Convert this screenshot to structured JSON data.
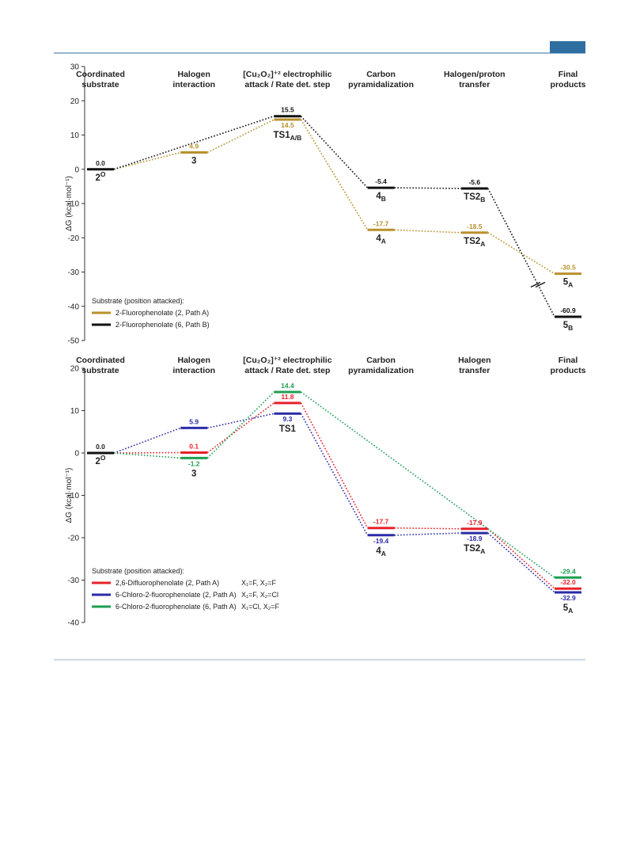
{
  "chart_data": [
    {
      "type": "line",
      "categories": [
        [
          "Coordinated",
          "substrate"
        ],
        [
          "Halogen",
          "interaction"
        ],
        [
          "[Cu₂O₂]⁺² electrophilic",
          "attack / Rate det. step"
        ],
        [
          "Carbon",
          "pyramidalization"
        ],
        [
          "Halogen/proton",
          "transfer"
        ],
        [
          "Final",
          "products"
        ]
      ],
      "y_label": "ΔG (kcal·mol⁻¹)",
      "ylim": [
        -50,
        30
      ],
      "yticks": [
        30,
        20,
        10,
        0,
        -10,
        -20,
        -30,
        -40,
        -50
      ],
      "broken_axis": true,
      "start": {
        "value": 0,
        "value_label": "0.0",
        "color": "#111111",
        "label": {
          "main": "2",
          "sup": "O"
        }
      },
      "legend_title": "Substrate (position attacked):",
      "series": [
        {
          "name": "2-Fluorophenolate (2, Path A)",
          "color": "#b8902c",
          "values": [
            null,
            4.9,
            14.5,
            -17.7,
            -18.5,
            -30.5
          ],
          "value_labels": [
            null,
            "4.9",
            "14.5",
            "-17.7",
            "-18.5",
            "-30.5"
          ],
          "labels": [
            null,
            {
              "main": "3"
            },
            null,
            {
              "main": "4",
              "sub": "A"
            },
            {
              "main": "TS2",
              "sub": "A"
            },
            {
              "main": "5",
              "sub": "A"
            }
          ]
        },
        {
          "name": "2-Fluorophenolate (6, Path B)",
          "color": "#111111",
          "values": [
            null,
            null,
            15.5,
            -5.4,
            -5.6,
            -60.9
          ],
          "value_labels": [
            null,
            null,
            "15.5",
            "-5.4",
            "-5.6",
            "-60.9"
          ],
          "labels": [
            null,
            null,
            {
              "main": "TS1",
              "sub": "A/B"
            },
            {
              "main": "4",
              "sub": "B"
            },
            {
              "main": "TS2",
              "sub": "B"
            },
            {
              "main": "5",
              "sub": "B"
            }
          ]
        }
      ]
    },
    {
      "type": "line",
      "categories": [
        [
          "Coordinated",
          "substrate"
        ],
        [
          "Halogen",
          "interaction"
        ],
        [
          "[Cu₂O₂]⁺² electrophilic",
          "attack / Rate det. step"
        ],
        [
          "Carbon",
          "pyramidalization"
        ],
        [
          "Halogen",
          "transfer"
        ],
        [
          "Final",
          "products"
        ]
      ],
      "y_label": "ΔG (kcal·mol⁻¹)",
      "ylim": [
        -40,
        20
      ],
      "yticks": [
        20,
        10,
        0,
        -10,
        -20,
        -30,
        -40
      ],
      "start": {
        "value": 0,
        "value_label": "0.0",
        "color": "#111111",
        "label": {
          "main": "2",
          "sup": "O"
        }
      },
      "stage_labels": [
        null,
        {
          "main": "3"
        },
        {
          "main": "TS1"
        },
        {
          "main": "4",
          "sub": "A"
        },
        {
          "main": "TS2",
          "sub": "A"
        },
        {
          "main": "5",
          "sub": "A"
        }
      ],
      "legend_title": "Substrate (position attacked):",
      "series": [
        {
          "name": "2,6-Difluorophenolate (2, Path A)",
          "note": "X₁=F, X₂=F",
          "color": "#e8202a",
          "values": [
            null,
            0.1,
            11.8,
            -17.7,
            -17.9,
            -32.0
          ],
          "value_labels": [
            null,
            "0.1",
            "11.8",
            "-17.7",
            "-17.9",
            "-32.0"
          ]
        },
        {
          "name": "6-Chloro-2-fluorophenolate (2, Path A)",
          "note": "X₁=F, X₂=Cl",
          "color": "#2b2ba8",
          "values": [
            null,
            5.9,
            9.3,
            -19.4,
            -18.9,
            -32.9
          ],
          "value_labels": [
            null,
            "5.9",
            "9.3",
            "-19.4",
            "-18.9",
            "-32.9"
          ]
        },
        {
          "name": "6-Chloro-2-fluorophenolate (6, Path A)",
          "note": "X₁=Cl, X₂=F",
          "color": "#1f9e52",
          "values": [
            null,
            -1.2,
            14.4,
            null,
            null,
            -29.4
          ],
          "value_labels": [
            null,
            "-1.2",
            "14.4",
            null,
            null,
            "-29.4"
          ]
        }
      ]
    }
  ]
}
